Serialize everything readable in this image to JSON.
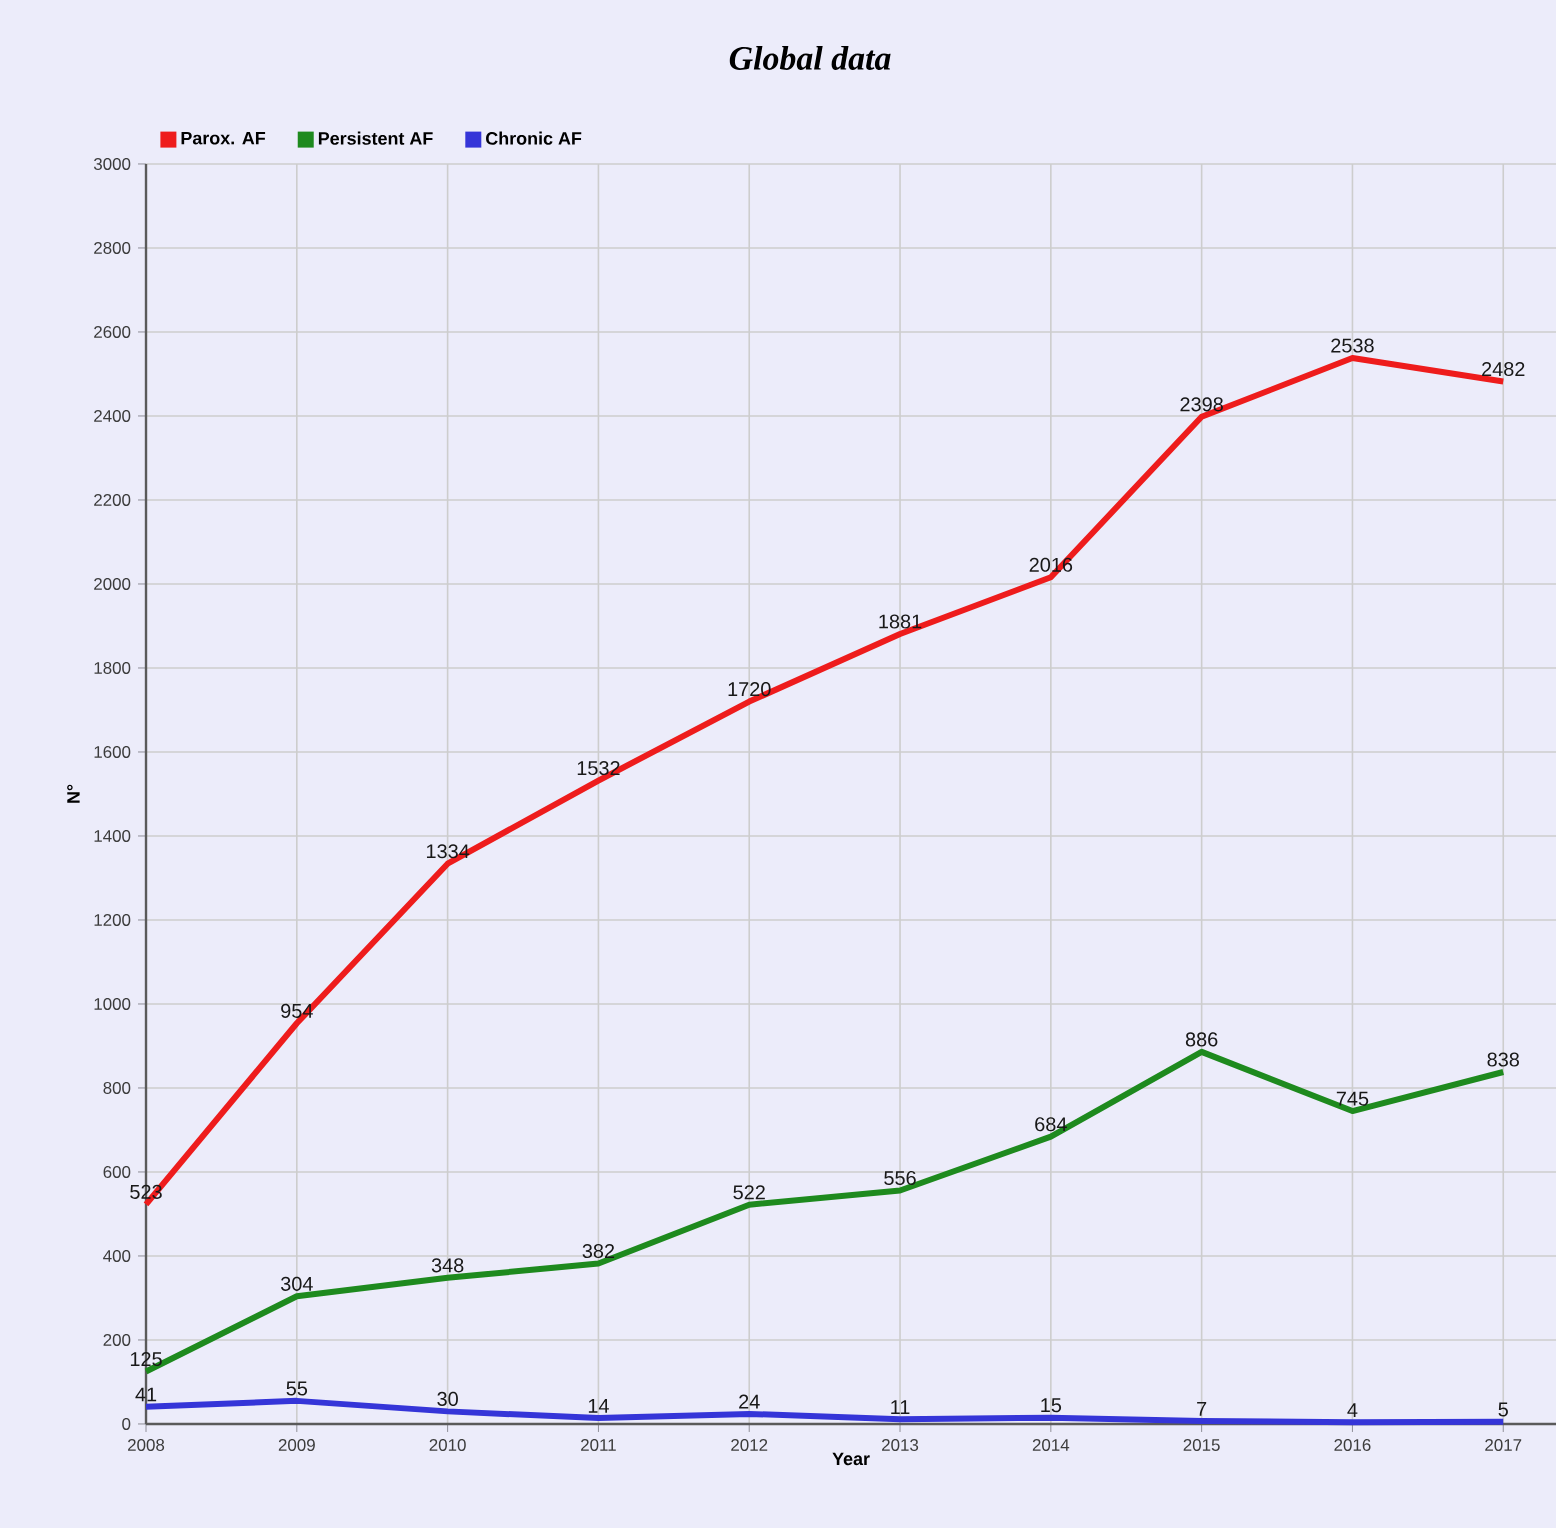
{
  "chart_data": {
    "type": "line",
    "title": "Global data",
    "xlabel": "Year",
    "ylabel": "N°",
    "categories": [
      "2008",
      "2009",
      "2010",
      "2011",
      "2012",
      "2013",
      "2014",
      "2015",
      "2016",
      "2017"
    ],
    "series": [
      {
        "name": "Parox. AF",
        "color": "#ee1c1c",
        "values": [
          523,
          954,
          1334,
          1532,
          1720,
          1881,
          2016,
          2398,
          2538,
          2482
        ]
      },
      {
        "name": "Persistent AF",
        "color": "#1e8a1e",
        "values": [
          125,
          304,
          348,
          382,
          522,
          556,
          684,
          886,
          745,
          838
        ]
      },
      {
        "name": "Chronic AF",
        "color": "#3535d8",
        "values": [
          41,
          55,
          30,
          14,
          24,
          11,
          15,
          7,
          4,
          5
        ]
      }
    ],
    "ylim": [
      0,
      3000
    ],
    "yticks": [
      0,
      200,
      400,
      600,
      800,
      1000,
      1200,
      1400,
      1600,
      1800,
      2000,
      2200,
      2400,
      2600,
      2800,
      3000
    ],
    "grid": true,
    "legend": "top left",
    "data_labels": true
  }
}
